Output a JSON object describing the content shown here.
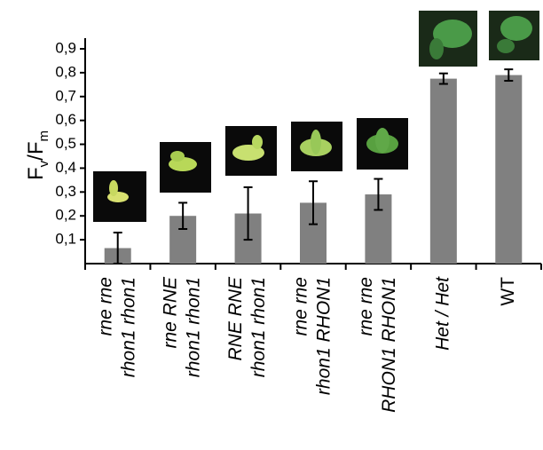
{
  "chart_data": {
    "type": "bar",
    "y_label": [
      "F",
      "v",
      "/F",
      "m"
    ],
    "categories": [
      [
        "rne rne",
        "rhon1 rhon1"
      ],
      [
        "rne RNE",
        "rhon1 rhon1"
      ],
      [
        "RNE RNE",
        "rhon1 rhon1"
      ],
      [
        "rne rne",
        "rhon1 RHON1"
      ],
      [
        "rne rne",
        "RHON1 RHON1"
      ],
      [
        "Het / Het"
      ],
      [
        "WT"
      ]
    ],
    "label_italic": [
      true,
      true,
      true,
      true,
      true,
      true,
      false
    ],
    "values": [
      0.065,
      0.2,
      0.21,
      0.255,
      0.29,
      0.775,
      0.79
    ],
    "errors": [
      0.065,
      0.055,
      0.11,
      0.09,
      0.065,
      0.022,
      0.024
    ],
    "color": "#808080",
    "ylim": [
      0,
      0.9
    ],
    "yticks": [
      {
        "value": 0.1,
        "label": "0,1"
      },
      {
        "value": 0.2,
        "label": "0,2"
      },
      {
        "value": 0.3,
        "label": "0,3"
      },
      {
        "value": 0.4,
        "label": "0,4"
      },
      {
        "value": 0.5,
        "label": "0,5"
      },
      {
        "value": 0.6,
        "label": "0,6"
      },
      {
        "value": 0.7,
        "label": "0,7"
      },
      {
        "value": 0.8,
        "label": "0,8"
      },
      {
        "value": 0.9,
        "label": "0,9"
      }
    ]
  }
}
